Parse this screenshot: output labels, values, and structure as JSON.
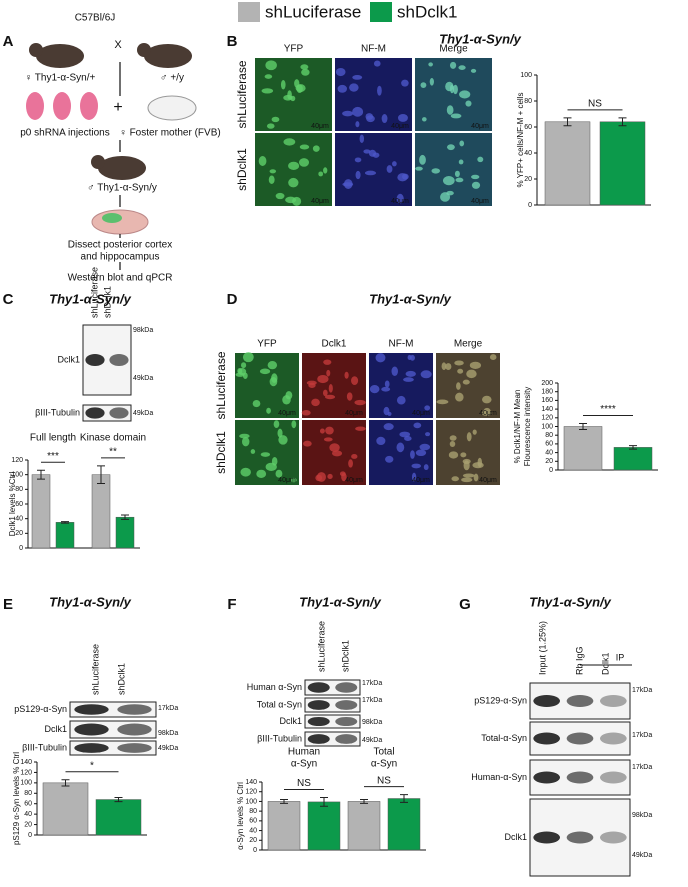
{
  "legend": [
    {
      "name": "shLuciferase",
      "color": "#b3b3b3"
    },
    {
      "name": "shDclk1",
      "color": "#0c9a4b"
    }
  ],
  "panels": {
    "A": {
      "label": "A",
      "strain": "C57Bl/6J",
      "cross": "X",
      "female": "♀ Thy1-α-Syn/+",
      "male": "♂ +/y",
      "injection": "p0 shRNA injections",
      "plus": "+",
      "foster": "♀ Foster mother (FVB)",
      "offspring": "♂ Thy1-α-Syn/y",
      "dissect": [
        "Dissect posterior cortex",
        "and hippocampus"
      ],
      "assay": "Western blot and qPCR"
    },
    "B": {
      "label": "B",
      "title": "Thy1-α-Syn/y",
      "columns": [
        "YFP",
        "NF-M",
        "Merge"
      ],
      "rows": [
        "shLuciferase",
        "shDclk1"
      ],
      "scale": "40μm"
    },
    "C": {
      "label": "C",
      "title": "Thy1-α-Syn/y",
      "lanes": [
        "shLuciferase",
        "shDclk1"
      ],
      "blots": [
        "Dclk1",
        "βIII-Tubulin"
      ],
      "markers": [
        "98kDa",
        "49kDa",
        "49kDa"
      ]
    },
    "D": {
      "label": "D",
      "title": "Thy1-α-Syn/y",
      "columns": [
        "YFP",
        "Dclk1",
        "NF-M",
        "Merge"
      ],
      "rows": [
        "shLuciferase",
        "shDclk1"
      ],
      "scale": "40μm"
    },
    "E": {
      "label": "E",
      "title": "Thy1-α-Syn/y",
      "lanes": [
        "shLuciferase",
        "shDclk1"
      ],
      "blots": [
        "pS129-α-Syn",
        "Dclk1",
        "βIII-Tubulin"
      ],
      "markers": [
        "17kDa",
        "98kDa",
        "49kDa"
      ]
    },
    "F": {
      "label": "F",
      "title": "Thy1-α-Syn/y",
      "lanes": [
        "shLuciferase",
        "shDclk1"
      ],
      "blots": [
        "Human α-Syn",
        "Total α-Syn",
        "Dclk1",
        "βIII-Tubulin"
      ],
      "markers": [
        "17kDa",
        "17kDa",
        "98kDa",
        "49kDa"
      ]
    },
    "G": {
      "label": "G",
      "title": "Thy1-α-Syn/y",
      "lanes": [
        "Input (1.25%)",
        "Rb IgG",
        "Dclk1"
      ],
      "ip": "IP",
      "blots": [
        "pS129-α-Syn",
        "Total-α-Syn",
        "Human-α-Syn",
        "Dclk1"
      ],
      "markers": [
        "17kDa",
        "17kDa",
        "17kDa",
        "98kDa",
        "49kDa"
      ]
    }
  },
  "chart_data": [
    {
      "type": "bar",
      "ylabel": [
        "% YFP+ cells/NF-M + cells"
      ],
      "categories": [
        null
      ],
      "series": [
        {
          "values": [
            64
          ],
          "errors": [
            3
          ]
        },
        {
          "values": [
            64
          ],
          "errors": [
            3
          ]
        }
      ],
      "significance": [
        "NS"
      ],
      "ylim": [
        0,
        100
      ],
      "yticks": [
        0,
        20,
        40,
        60,
        80,
        100
      ]
    },
    {
      "type": "bar",
      "ylabel": [
        "Dclk1 levels %Ctrl"
      ],
      "categories": [
        [
          "Full length"
        ],
        [
          "Kinase domain"
        ]
      ],
      "series": [
        {
          "values": [
            100,
            100
          ],
          "errors": [
            6,
            12
          ]
        },
        {
          "values": [
            35,
            42
          ],
          "errors": [
            1,
            3
          ]
        }
      ],
      "significance": [
        "***",
        "**"
      ],
      "ylim": [
        0,
        120
      ],
      "yticks": [
        0,
        20,
        40,
        60,
        80,
        100,
        120
      ]
    },
    {
      "type": "bar",
      "ylabel": [
        "% Dclk1/NF-M Mean",
        "Flourescence intensity"
      ],
      "categories": [
        null
      ],
      "series": [
        {
          "values": [
            100
          ],
          "errors": [
            7
          ]
        },
        {
          "values": [
            52
          ],
          "errors": [
            4
          ]
        }
      ],
      "significance": [
        "****"
      ],
      "ylim": [
        0,
        200
      ],
      "yticks": [
        0,
        20,
        40,
        60,
        80,
        100,
        120,
        140,
        160,
        180,
        200
      ]
    },
    {
      "type": "bar",
      "ylabel": [
        "pS129 α-Syn levels % Ctrl"
      ],
      "categories": [
        null
      ],
      "series": [
        {
          "values": [
            100
          ],
          "errors": [
            6
          ]
        },
        {
          "values": [
            68
          ],
          "errors": [
            4
          ]
        }
      ],
      "significance": [
        "*"
      ],
      "ylim": [
        0,
        140
      ],
      "yticks": [
        0,
        20,
        40,
        60,
        80,
        100,
        120,
        140
      ]
    },
    {
      "type": "bar",
      "ylabel": [
        "α-Syn levels % Ctrl"
      ],
      "categories": [
        [
          "Human",
          "α-Syn"
        ],
        [
          "Total",
          "α-Syn"
        ]
      ],
      "series": [
        {
          "values": [
            100,
            100
          ],
          "errors": [
            4,
            4
          ]
        },
        {
          "values": [
            99,
            106
          ],
          "errors": [
            9,
            8
          ]
        }
      ],
      "significance": [
        "NS",
        "NS"
      ],
      "ylim": [
        0,
        140
      ],
      "yticks": [
        0,
        20,
        40,
        60,
        80,
        100,
        120,
        140
      ]
    }
  ]
}
